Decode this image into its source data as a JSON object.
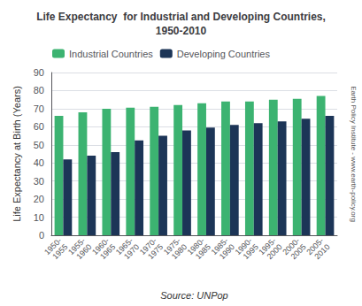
{
  "chart_data": {
    "type": "bar",
    "title": "Life Expectancy  for Industrial and Developing Countries,\n1950-2010",
    "xlabel": "Source: UNPop",
    "ylabel": "Life Expectancy at Birth (Years)",
    "annotations": [
      "Earth Policy Institute - www.earth-policy.org"
    ],
    "categories": [
      "1950-\n1955",
      "1955-\n1960",
      "1960-\n1965",
      "1965-\n1970",
      "1970-\n1975",
      "1975-\n1980",
      "1980-\n1985",
      "1985-\n1990",
      "1990-\n1995",
      "1995-\n2000",
      "2000-\n2005",
      "2005-\n2010"
    ],
    "series": [
      {
        "name": "Industrial Countries",
        "color": "#3CB371",
        "values": [
          66,
          68,
          70,
          70.5,
          71,
          72,
          73,
          74,
          74,
          75,
          75.5,
          77
        ]
      },
      {
        "name": "Developing Countries",
        "color": "#1C3557",
        "values": [
          42,
          44,
          46,
          52.5,
          55,
          58,
          59.5,
          61,
          62,
          63,
          64.5,
          66
        ]
      }
    ],
    "ylim": [
      0,
      90
    ],
    "yticks": [
      0,
      10,
      20,
      30,
      40,
      50,
      60,
      70,
      80,
      90
    ],
    "grid": true,
    "legend": "upper left"
  }
}
